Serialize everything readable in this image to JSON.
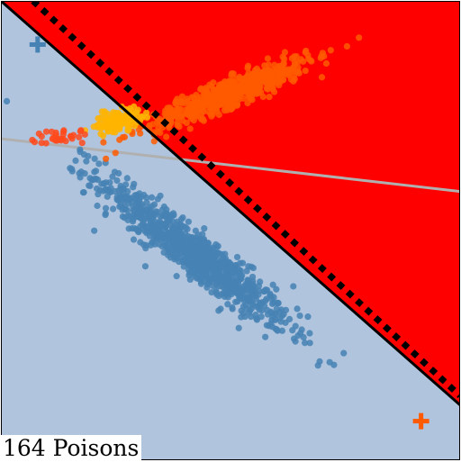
{
  "chart_data": {
    "type": "scatter",
    "title": "",
    "xlabel": "",
    "ylabel": "",
    "xlim": [
      -1.0,
      1.0
    ],
    "ylim": [
      -1.0,
      1.0
    ],
    "grid": false,
    "legend": "none",
    "annotation": "164 Poisons",
    "colors": {
      "background_negative": "#b0c4de",
      "background_positive": "#ff0000",
      "clean_negative": "#4682b4",
      "clean_positive": "#ff5a00",
      "poison_positive": "#ffb400",
      "poison_extra": "#ff4a1c",
      "clean_boundary": "#000000",
      "poisoned_boundary": "#000000",
      "reference_line": "#b0b0b0",
      "outline": "#000000"
    },
    "decision_boundaries": [
      {
        "name": "clean",
        "style": "solid",
        "p1": [
          -1.0,
          1.0
        ],
        "p2": [
          1.0,
          -0.76
        ]
      },
      {
        "name": "poisoned",
        "style": "dashed",
        "p1": [
          -0.86,
          1.0
        ],
        "p2": [
          1.0,
          -0.72
        ]
      }
    ],
    "reference_line": {
      "p1": [
        -1.0,
        0.4
      ],
      "p2": [
        1.0,
        0.17
      ]
    },
    "centroids": [
      {
        "class": "negative",
        "marker": "plus",
        "x": -0.84,
        "y": 0.81
      },
      {
        "class": "positive",
        "marker": "plus",
        "x": 0.83,
        "y": -0.83
      }
    ],
    "series": [
      {
        "class": "negative",
        "center": [
          -0.16,
          -0.1
        ],
        "count": 950,
        "spread_major": 0.26,
        "spread_minor": 0.045,
        "angle_deg": -38
      },
      {
        "class": "positive",
        "center": [
          0.0,
          0.6
        ],
        "count": 650,
        "spread_major": 0.19,
        "spread_minor": 0.03,
        "angle_deg": 22
      },
      {
        "class": "poison",
        "center": [
          -0.49,
          0.48
        ],
        "count": 130,
        "spread_major": 0.05,
        "spread_minor": 0.022,
        "angle_deg": 15
      },
      {
        "class": "poison-extra",
        "center": [
          -0.74,
          0.41
        ],
        "count": 34,
        "spread_major": 0.06,
        "spread_minor": 0.018,
        "angle_deg": 10
      }
    ]
  }
}
